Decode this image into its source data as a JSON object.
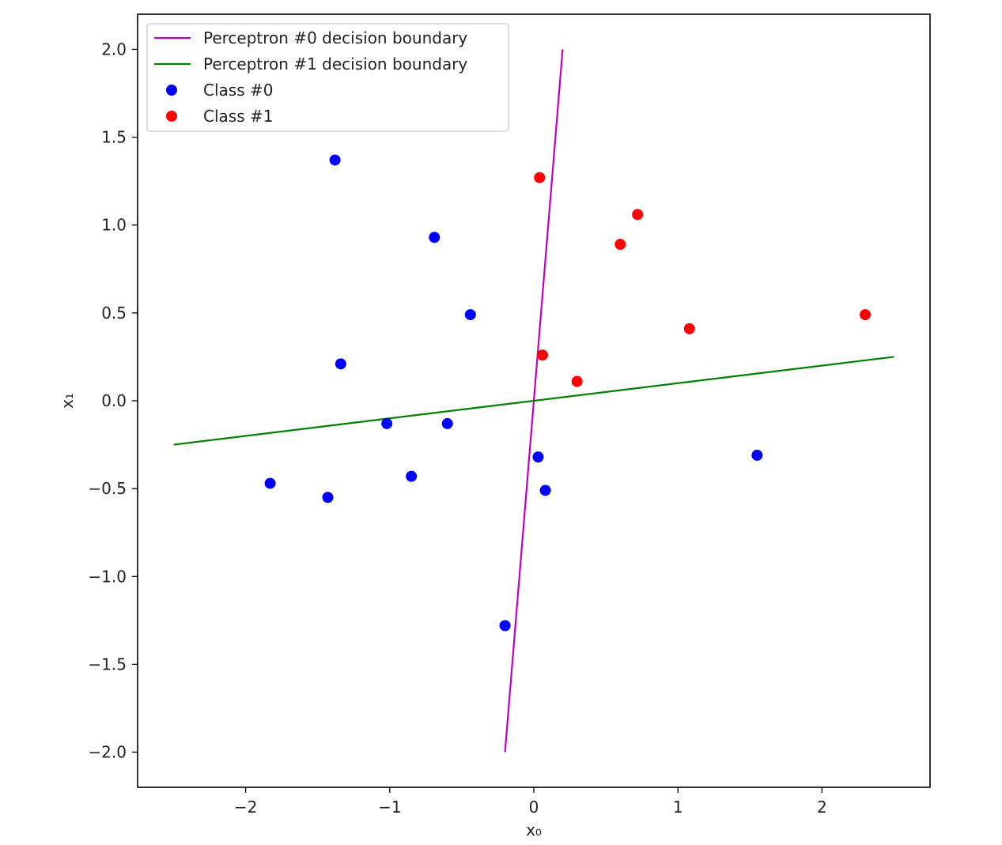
{
  "chart_data": {
    "type": "scatter",
    "xlabel": "x₀",
    "ylabel": "x₁",
    "xlim": [
      -2.75,
      2.75
    ],
    "ylim": [
      -2.2,
      2.2
    ],
    "x_ticks": [
      {
        "value": -2,
        "label": "−2"
      },
      {
        "value": -1,
        "label": "−1"
      },
      {
        "value": 0,
        "label": "0"
      },
      {
        "value": 1,
        "label": "1"
      },
      {
        "value": 2,
        "label": "2"
      }
    ],
    "y_ticks": [
      {
        "value": 2.0,
        "label": "2.0"
      },
      {
        "value": 1.5,
        "label": "1.5"
      },
      {
        "value": 1.0,
        "label": "1.0"
      },
      {
        "value": 0.5,
        "label": "0.5"
      },
      {
        "value": 0.0,
        "label": "0.0"
      },
      {
        "value": -0.5,
        "label": "−0.5"
      },
      {
        "value": -1.0,
        "label": "−1.0"
      },
      {
        "value": -1.5,
        "label": "−1.5"
      },
      {
        "value": -2.0,
        "label": "−2.0"
      }
    ],
    "grid": false,
    "legend_position": "top-left",
    "lines": [
      {
        "name": "Perceptron #0 decision boundary",
        "color": "#bf00bf",
        "x": [
          -0.2,
          0.2
        ],
        "y": [
          -2.0,
          2.0
        ]
      },
      {
        "name": "Perceptron #1 decision boundary",
        "color": "#008000",
        "x": [
          -2.5,
          2.5
        ],
        "y": [
          -0.25,
          0.25
        ]
      }
    ],
    "series": [
      {
        "name": "Class #0",
        "color": "#0000ff",
        "points": [
          [
            -1.38,
            1.37
          ],
          [
            -0.69,
            0.93
          ],
          [
            -0.44,
            0.49
          ],
          [
            -1.34,
            0.21
          ],
          [
            -1.02,
            -0.13
          ],
          [
            -0.6,
            -0.13
          ],
          [
            -1.83,
            -0.47
          ],
          [
            -1.43,
            -0.55
          ],
          [
            -0.85,
            -0.43
          ],
          [
            0.03,
            -0.32
          ],
          [
            0.08,
            -0.51
          ],
          [
            1.55,
            -0.31
          ],
          [
            -0.2,
            -1.28
          ]
        ]
      },
      {
        "name": "Class #1",
        "color": "#ff0000",
        "points": [
          [
            0.04,
            1.27
          ],
          [
            0.72,
            1.06
          ],
          [
            0.6,
            0.89
          ],
          [
            1.08,
            0.41
          ],
          [
            2.3,
            0.49
          ],
          [
            0.06,
            0.26
          ],
          [
            0.3,
            0.11
          ]
        ]
      }
    ]
  }
}
